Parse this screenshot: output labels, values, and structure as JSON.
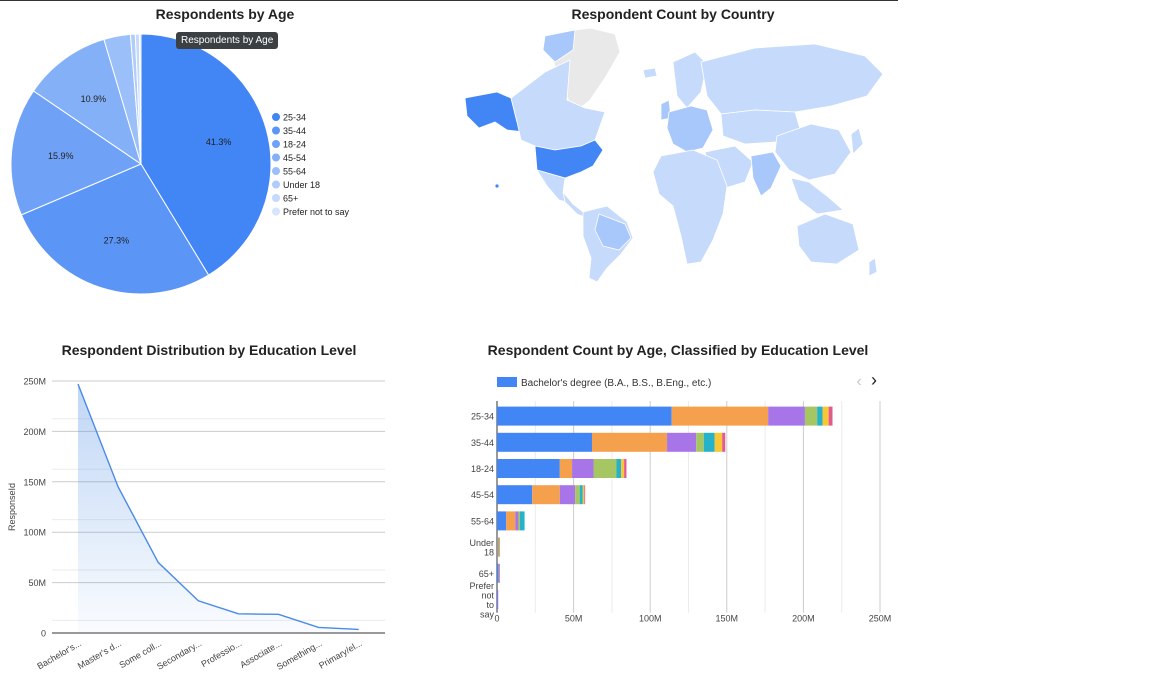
{
  "tooltip": "Respondents by Age",
  "colors": {
    "accent": "#4285f4",
    "line": "#4a8be5",
    "grid": "#cccccc",
    "map_highlight": "#4285f4",
    "map_medium": "#a8c7fa",
    "map_light": "#c6dafc",
    "map_none": "#e9e9e9"
  },
  "chart_data": [
    {
      "type": "pie",
      "title": "Respondents by Age",
      "slices": [
        {
          "label": "25-34",
          "value": 41.3,
          "display": "41.3%",
          "color": "#4285f4"
        },
        {
          "label": "35-44",
          "value": 27.3,
          "display": "27.3%",
          "color": "#5b95f5"
        },
        {
          "label": "18-24",
          "value": 15.9,
          "display": "15.9%",
          "color": "#6fa2f6"
        },
        {
          "label": "45-54",
          "value": 10.9,
          "display": "10.9%",
          "color": "#84b0f7"
        },
        {
          "label": "55-64",
          "value": 3.3,
          "display": "",
          "color": "#9bbff8"
        },
        {
          "label": "Under 18",
          "value": 0.6,
          "display": "",
          "color": "#b0ccfa"
        },
        {
          "label": "65+",
          "value": 0.5,
          "display": "",
          "color": "#c4d9fb"
        },
        {
          "label": "Prefer not to say",
          "value": 0.2,
          "display": "",
          "color": "#d6e4fc"
        }
      ],
      "legend_position": "right"
    },
    {
      "type": "geo",
      "title": "Respondent Count by Country",
      "highlighted_regions": [
        "United States",
        "India",
        "Canada",
        "Western Europe"
      ]
    },
    {
      "type": "area",
      "title": "Respondent Distribution by Education Level",
      "ylabel": "ResponseId",
      "categories": [
        "Bachelor's...",
        "Master's d...",
        "Some coll...",
        "Secondary...",
        "Professio...",
        "Associate...",
        "Something...",
        "Primary/el..."
      ],
      "values": [
        247000000,
        145000000,
        70000000,
        32000000,
        19000000,
        18500000,
        5500000,
        3500000
      ],
      "ylim": [
        0,
        250000000
      ],
      "yticks": [
        {
          "value": 0,
          "label": "0"
        },
        {
          "value": 50000000,
          "label": "50M"
        },
        {
          "value": 100000000,
          "label": "100M"
        },
        {
          "value": 150000000,
          "label": "150M"
        },
        {
          "value": 200000000,
          "label": "200M"
        },
        {
          "value": 250000000,
          "label": "250M"
        }
      ],
      "grid": true
    },
    {
      "type": "bar",
      "orientation": "horizontal",
      "stacked": true,
      "title": "Respondent Count by Age, Classified by Education Level",
      "legend_entry": "Bachelor's degree (B.A., B.S., B.Eng., etc.)",
      "categories": [
        {
          "label": "25-34"
        },
        {
          "label": "35-44"
        },
        {
          "label": "18-24"
        },
        {
          "label": "45-54"
        },
        {
          "label": "55-64"
        },
        {
          "label": "Under 18"
        },
        {
          "label": "65+"
        },
        {
          "label": "Prefer not to say"
        }
      ],
      "series_colors": [
        "#4285f4",
        "#f4a04c",
        "#a775e8",
        "#a6c663",
        "#26b3c9",
        "#f9c635",
        "#e25a8b"
      ],
      "stacks": [
        [
          114000000,
          63000000,
          24000000,
          8000000,
          3500000,
          4000000,
          2500000
        ],
        [
          62000000,
          49000000,
          19000000,
          5000000,
          7000000,
          5000000,
          2000000
        ],
        [
          41000000,
          8000000,
          14000000,
          15000000,
          3000000,
          2000000,
          1500000
        ],
        [
          23000000,
          18000000,
          10000000,
          3000000,
          2000000,
          1000000,
          500000
        ],
        [
          6000000,
          6000000,
          2000000,
          1000000,
          3000000,
          0,
          0
        ],
        [
          300000,
          700000,
          300000,
          700000,
          0,
          0,
          0
        ],
        [
          1000000,
          300000,
          300000,
          0,
          0,
          0,
          0
        ],
        [
          300000,
          0,
          400000,
          0,
          0,
          0,
          0
        ]
      ],
      "xlim": [
        0,
        250000000
      ],
      "xticks": [
        {
          "value": 0,
          "label": "0"
        },
        {
          "value": 50000000,
          "label": "50M"
        },
        {
          "value": 100000000,
          "label": "100M"
        },
        {
          "value": 150000000,
          "label": "150M"
        },
        {
          "value": 200000000,
          "label": "200M"
        },
        {
          "value": 250000000,
          "label": "250M"
        }
      ],
      "grid": true
    }
  ]
}
